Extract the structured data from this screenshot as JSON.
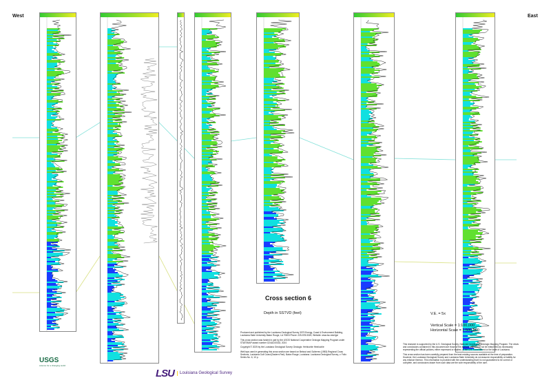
{
  "directions": {
    "west": "West",
    "east": "East"
  },
  "title": "Cross section 6",
  "subtitle": "Depth in SSTVD (feet)",
  "credits": [
    "Produced and published by the Louisiana Geological Survey 3079 Energy, Coast & Environment Building, Louisiana State University Baton Rouge, LA 70803 Phone: 225-578-5320; Website: www.lsu.edu/lgs/",
    "This cross section was funded in part by the USGS National Cooperative Geologic Mapping Program under STATEMAP award number G24AC00333, 2024",
    "Copyright © 2025 by the Louisiana Geological Survey Geologic: Heinlochle Heinlochle",
    "Well tops used in generating this cross section are based on Bebout and Gutierrez (1983) Regional Cross Sections, Louisiana Gulf Coast (Eastern Part). Baton Rouge, Louisiana. Louisiana Geological Survey, v. Folio Series No. 6, 10 p."
  ],
  "scales": {
    "ve": "V.E. = 5x",
    "vertical": "Vertical Scale = 1:100,000",
    "horizontal": "Horizontal Scale = 1:500,000"
  },
  "disclaimer": [
    "This research is supported by the U.S. Geological Survey, National Cooperative Geologic Mapping Program. The views and conclusions contained in this document are those of the authors and should not be interpreted as necessarily representing the official policies, either expressed or implied, of the U.S. Government or the state of Louisiana.",
    "This cross section has been carefully prepared from the best existing sources available at the time of preparation. However, the Louisiana Geological Survey and Louisiana State University do not assume responsibility or liability for any reliance thereon. This information is provided with the understanding that it is not guaranteed to be correct or complete, and conclusions drawn from such data are the sole responsibility of the user."
  ],
  "logos": {
    "usgs": "USGS",
    "usgs_tag": "science for a changing world",
    "lsu": "LSU",
    "lsu_name": "Louisiana Geological Survey"
  },
  "colors": {
    "correlation_cyan": "#7fe0d8",
    "correlation_yellow": "#d8e080",
    "log_blue": "#1a3cff",
    "log_cyan": "#10e0e0",
    "log_green": "#60e030",
    "log_yellow": "#e8e020"
  }
}
